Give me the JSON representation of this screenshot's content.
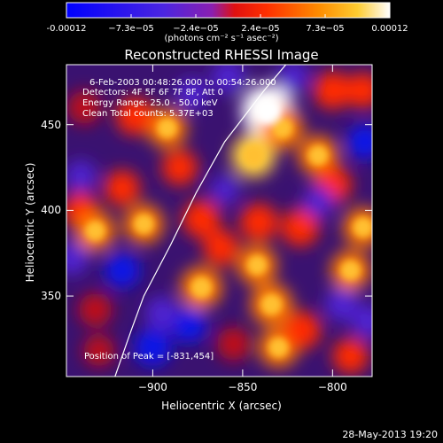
{
  "colorbar": {
    "tick_labels": [
      "-0.00012",
      "−7.3e−05",
      "−2.4e−05",
      "2.4e−05",
      "7.3e−05",
      "0.00012"
    ],
    "unit_label": "(photons cm⁻² s⁻¹ asec⁻²)",
    "range": [
      -0.00012,
      0.00012
    ],
    "colors": [
      "#0000ff",
      "#7a1bd0",
      "#ff0000",
      "#ff8a00",
      "#ffffff"
    ]
  },
  "info": {
    "time_range": "6-Feb-2003 00:48:26.000 to 00:54:26.000",
    "detectors": "Detectors: 4F 5F 6F 7F 8F, Att 0",
    "energy_range": "Energy Range: 25.0 - 50.0 keV",
    "clean_counts": "Clean     Total counts: 5.37E+03",
    "peak": "Position of Peak = [-831,454]"
  },
  "footer": {
    "date": "28-May-2013 19:20"
  },
  "chart_data": {
    "type": "heatmap",
    "title": "Reconstructed RHESSI Image",
    "xlabel": "Heliocentric X (arcsec)",
    "ylabel": "Heliocentric Y (arcsec)",
    "xlim": [
      -948,
      -778
    ],
    "ylim": [
      303,
      485
    ],
    "x_ticks": [
      -900,
      -850,
      -800
    ],
    "x_tick_labels": [
      "−900",
      "−850",
      "−800"
    ],
    "y_ticks": [
      350,
      400,
      450
    ],
    "y_tick_labels": [
      "350",
      "400",
      "450"
    ],
    "peak_position": [
      -831,
      454
    ],
    "limb_curve": [
      [
        -921,
        303
      ],
      [
        -912,
        330
      ],
      [
        -905,
        350
      ],
      [
        -890,
        380
      ],
      [
        -876,
        410
      ],
      [
        -860,
        440
      ],
      [
        -838,
        470
      ],
      [
        -826,
        485
      ]
    ],
    "blobs": [
      {
        "x": -836,
        "y": 458,
        "value": 0.00013
      },
      {
        "x": -844,
        "y": 432,
        "value": 9e-05
      },
      {
        "x": -828,
        "y": 448,
        "value": 8e-05
      },
      {
        "x": -892,
        "y": 448,
        "value": 7e-05
      },
      {
        "x": -910,
        "y": 455,
        "value": 6e-05
      },
      {
        "x": -885,
        "y": 425,
        "value": 5e-05
      },
      {
        "x": -917,
        "y": 413,
        "value": 5e-05
      },
      {
        "x": -940,
        "y": 400,
        "value": 5e-05
      },
      {
        "x": -932,
        "y": 388,
        "value": 7e-05
      },
      {
        "x": -905,
        "y": 392,
        "value": 7e-05
      },
      {
        "x": -873,
        "y": 395,
        "value": 6e-05
      },
      {
        "x": -862,
        "y": 378,
        "value": 5e-05
      },
      {
        "x": -873,
        "y": 355,
        "value": 8e-05
      },
      {
        "x": -841,
        "y": 393,
        "value": 6e-05
      },
      {
        "x": -842,
        "y": 368,
        "value": 7e-05
      },
      {
        "x": -834,
        "y": 345,
        "value": 8e-05
      },
      {
        "x": -818,
        "y": 390,
        "value": 6e-05
      },
      {
        "x": -808,
        "y": 432,
        "value": 7e-05
      },
      {
        "x": -800,
        "y": 415,
        "value": 6e-05
      },
      {
        "x": -783,
        "y": 390,
        "value": 7e-05
      },
      {
        "x": -790,
        "y": 365,
        "value": 7e-05
      },
      {
        "x": -790,
        "y": 315,
        "value": 5e-05
      },
      {
        "x": -830,
        "y": 320,
        "value": 7e-05
      },
      {
        "x": -817,
        "y": 330,
        "value": 6e-05
      },
      {
        "x": -800,
        "y": 470,
        "value": 6e-05
      },
      {
        "x": -783,
        "y": 470,
        "value": 5e-05
      },
      {
        "x": -855,
        "y": 322,
        "value": 4e-05
      },
      {
        "x": -932,
        "y": 342,
        "value": 4e-05
      },
      {
        "x": -930,
        "y": 318,
        "value": 3e-05
      },
      {
        "x": -938,
        "y": 460,
        "value": 4e-05
      },
      {
        "x": -900,
        "y": 320,
        "value": -6e-05
      },
      {
        "x": -880,
        "y": 333,
        "value": -5e-05
      },
      {
        "x": -917,
        "y": 365,
        "value": -5e-05
      },
      {
        "x": -895,
        "y": 340,
        "value": -4e-05
      },
      {
        "x": -858,
        "y": 478,
        "value": -4e-05
      },
      {
        "x": -878,
        "y": 468,
        "value": -3e-05
      },
      {
        "x": -782,
        "y": 440,
        "value": -5e-05
      },
      {
        "x": -795,
        "y": 345,
        "value": -4e-05
      },
      {
        "x": -780,
        "y": 335,
        "value": -4e-05
      },
      {
        "x": -808,
        "y": 405,
        "value": -3e-05
      },
      {
        "x": -940,
        "y": 420,
        "value": -3e-05
      },
      {
        "x": -822,
        "y": 478,
        "value": -3e-05
      },
      {
        "x": -860,
        "y": 412,
        "value": -2e-05
      },
      {
        "x": -945,
        "y": 372,
        "value": -4e-05
      }
    ]
  }
}
